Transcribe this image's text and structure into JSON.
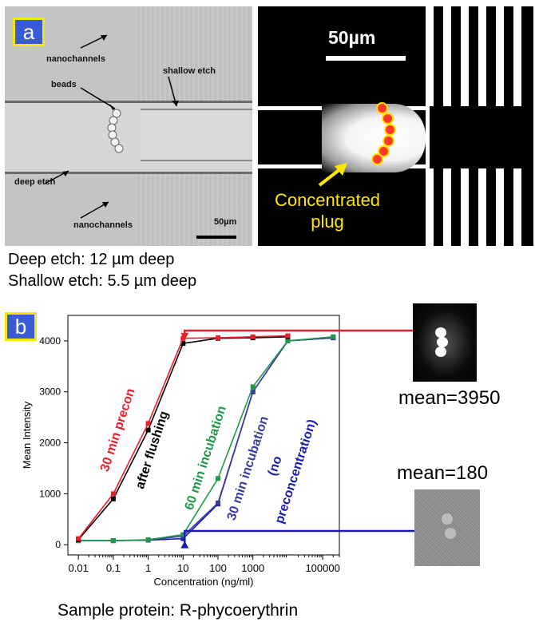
{
  "panel_a": {
    "badge": "a",
    "micrograph": {
      "labels": {
        "nanochannels_top": "nanochannels",
        "shallow_etch": "shallow etch",
        "beads": "beads",
        "deep_etch": "deep etch",
        "nanochannels_bottom": "nanochannels",
        "scale": "50µm"
      }
    },
    "fluorescence": {
      "scale": "50µm",
      "plug_label_line1": "Concentrated",
      "plug_label_line2": "plug"
    },
    "notes": {
      "deep": "Deep etch: 12 µm deep",
      "shallow": "Shallow etch: 5.5 µm deep"
    }
  },
  "panel_b": {
    "badge": "b",
    "mean_high": "mean=3950",
    "mean_low": "mean=180",
    "caption": "Sample protein: R-phycoerythrin"
  },
  "chart_data": {
    "type": "scatter",
    "xlabel": "Concentration (ng/ml)",
    "ylabel": "Mean Intensity",
    "xscale": "log",
    "xlim": [
      0.005,
      300000
    ],
    "ylim": [
      -200,
      4500
    ],
    "xticks": [
      "0.01",
      "0.1",
      "1",
      "10",
      "100",
      "1000",
      "100000"
    ],
    "xtick_values": [
      0.01,
      0.1,
      1,
      10,
      100,
      1000,
      100000
    ],
    "yticks": [
      0,
      1000,
      2000,
      3000,
      4000
    ],
    "series": [
      {
        "name": "30 min precon",
        "color": "#e8202a",
        "x": [
          0.01,
          0.1,
          1,
          10,
          100,
          1000,
          10000
        ],
        "y": [
          120,
          1000,
          2380,
          4050,
          4060,
          4080,
          4100
        ]
      },
      {
        "name": "after flushing",
        "color": "#000000",
        "x": [
          0.01,
          0.1,
          1,
          10,
          100,
          1000,
          10000
        ],
        "y": [
          100,
          900,
          2250,
          3950,
          4050,
          4060,
          4080
        ]
      },
      {
        "name": "60 min incubation",
        "color": "#1f9a4a",
        "x": [
          0.01,
          0.1,
          1,
          10,
          100,
          1000,
          10000,
          200000
        ],
        "y": [
          80,
          80,
          100,
          200,
          1300,
          3100,
          4000,
          4080
        ]
      },
      {
        "name": "30 min incubation",
        "color": "#3b3b9e",
        "x": [
          0.01,
          0.1,
          1,
          10,
          100,
          1000,
          10000,
          200000
        ],
        "y": [
          80,
          80,
          90,
          170,
          820,
          3000,
          4000,
          4060
        ]
      },
      {
        "name": "(no preconcentration)",
        "color": "#1a1ab0",
        "x": [
          0.01,
          0.1,
          1,
          10,
          100,
          1000,
          10000,
          200000
        ],
        "y": [
          80,
          80,
          90,
          120,
          800,
          3000,
          4000,
          4060
        ]
      }
    ],
    "annotations": [
      "30 min precon",
      "after flushing",
      "60 min incubation",
      "30 min incubation",
      "(no",
      "preconcentration)"
    ]
  }
}
